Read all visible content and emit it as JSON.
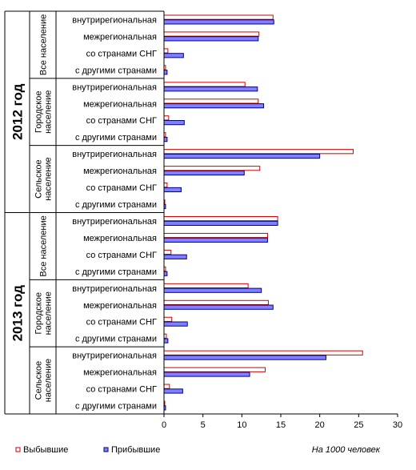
{
  "chart_data": {
    "type": "bar",
    "orientation": "horizontal",
    "xlim": [
      0,
      30
    ],
    "x_ticks": [
      "0",
      "5",
      "10",
      "15",
      "20",
      "25",
      "30"
    ],
    "grid": false,
    "legend_position": "bottom-left",
    "note": "На 1000 человек",
    "series": [
      {
        "name": "Выбывшие",
        "color": "#ffffff",
        "stroke": "#cc0000"
      },
      {
        "name": "Прибывшие",
        "color": "#8080ff",
        "stroke": "#000080"
      }
    ],
    "years": [
      {
        "label": "2012 год",
        "groups": [
          {
            "label_lines": [
              "Все население"
            ],
            "rows": [
              {
                "label": "внутрирегиональная",
                "values": [
                  14.0,
                  14.1
                ]
              },
              {
                "label": "межрегиональная",
                "values": [
                  12.2,
                  12.1
                ]
              },
              {
                "label": "со странами СНГ",
                "values": [
                  0.5,
                  2.5
                ]
              },
              {
                "label": "с другими странами",
                "values": [
                  0.2,
                  0.4
                ]
              }
            ]
          },
          {
            "label_lines": [
              "Городское",
              "население"
            ],
            "rows": [
              {
                "label": "внутрирегиональная",
                "values": [
                  10.4,
                  12.0
                ]
              },
              {
                "label": "межрегиональная",
                "values": [
                  12.1,
                  12.8
                ]
              },
              {
                "label": "со странами СНГ",
                "values": [
                  0.6,
                  2.6
                ]
              },
              {
                "label": "с другими странами",
                "values": [
                  0.2,
                  0.4
                ]
              }
            ]
          },
          {
            "label_lines": [
              "Сельское",
              "население"
            ],
            "rows": [
              {
                "label": "внутрирегиональная",
                "values": [
                  24.3,
                  20.0
                ]
              },
              {
                "label": "межрегиональная",
                "values": [
                  12.3,
                  10.3
                ]
              },
              {
                "label": "со странами СНГ",
                "values": [
                  0.4,
                  2.2
                ]
              },
              {
                "label": "с другими странами",
                "values": [
                  0.1,
                  0.2
                ]
              }
            ]
          }
        ]
      },
      {
        "label": "2013 год",
        "groups": [
          {
            "label_lines": [
              "Все население"
            ],
            "rows": [
              {
                "label": "внутрирегиональная",
                "values": [
                  14.6,
                  14.6
                ]
              },
              {
                "label": "межрегиональная",
                "values": [
                  13.3,
                  13.3
                ]
              },
              {
                "label": "со странами СНГ",
                "values": [
                  0.9,
                  2.9
                ]
              },
              {
                "label": "с другими странами",
                "values": [
                  0.2,
                  0.4
                ]
              }
            ]
          },
          {
            "label_lines": [
              "Городское",
              "население"
            ],
            "rows": [
              {
                "label": "внутрирегиональная",
                "values": [
                  10.8,
                  12.5
                ]
              },
              {
                "label": "межрегиональная",
                "values": [
                  13.4,
                  14.0
                ]
              },
              {
                "label": "со странами СНГ",
                "values": [
                  1.0,
                  3.0
                ]
              },
              {
                "label": "с другими странами",
                "values": [
                  0.3,
                  0.5
                ]
              }
            ]
          },
          {
            "label_lines": [
              "Сельское",
              "население"
            ],
            "rows": [
              {
                "label": "внутрирегиональная",
                "values": [
                  25.5,
                  20.8
                ]
              },
              {
                "label": "межрегиональная",
                "values": [
                  13.0,
                  11.0
                ]
              },
              {
                "label": "со странами СНГ",
                "values": [
                  0.7,
                  2.4
                ]
              },
              {
                "label": "с другими странами",
                "values": [
                  0.1,
                  0.2
                ]
              }
            ]
          }
        ]
      }
    ]
  }
}
